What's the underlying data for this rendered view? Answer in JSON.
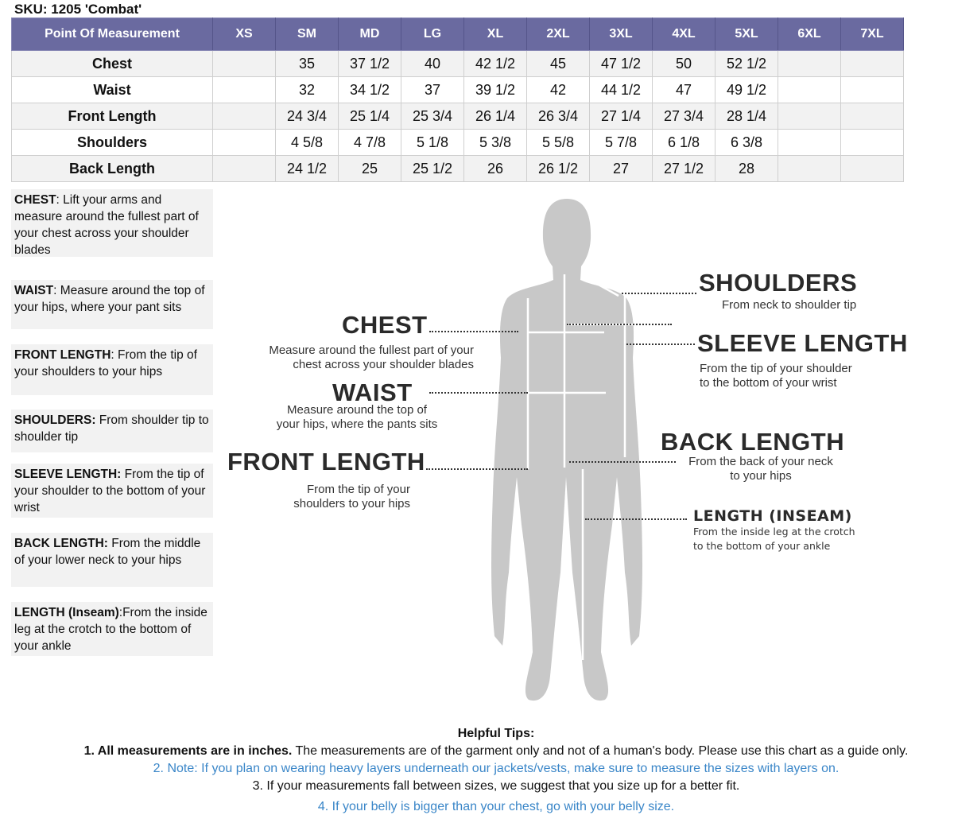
{
  "sku": "SKU: 1205 'Combat'",
  "table": {
    "headers": [
      "Point Of Measurement",
      "XS",
      "SM",
      "MD",
      "LG",
      "XL",
      "2XL",
      "3XL",
      "4XL",
      "5XL",
      "6XL",
      "7XL"
    ],
    "rows": [
      [
        "Chest",
        "",
        "35",
        "37 1/2",
        "40",
        "42 1/2",
        "45",
        "47 1/2",
        "50",
        "52 1/2",
        "",
        ""
      ],
      [
        "Waist",
        "",
        "32",
        "34 1/2",
        "37",
        "39 1/2",
        "42",
        "44 1/2",
        "47",
        "49 1/2",
        "",
        ""
      ],
      [
        "Front Length",
        "",
        "24 3/4",
        "25 1/4",
        "25 3/4",
        "26 1/4",
        "26 3/4",
        "27 1/4",
        "27 3/4",
        "28 1/4",
        "",
        ""
      ],
      [
        "Shoulders",
        "",
        "4 5/8",
        "4 7/8",
        "5 1/8",
        "5 3/8",
        "5 5/8",
        "5 7/8",
        "6 1/8",
        "6 3/8",
        "",
        ""
      ],
      [
        "Back Length",
        "",
        "24 1/2",
        "25",
        "25 1/2",
        "26",
        "26 1/2",
        "27",
        "27 1/2",
        "28",
        "",
        ""
      ]
    ],
    "header_color": "#6a6aa0"
  },
  "notes": [
    {
      "term": "CHEST",
      "text": ": Lift your arms  and measure around the fullest part of your chest across your shoulder blades"
    },
    {
      "term": "WAIST",
      "text": ":  Measure around the top of your hips, where your pant sits"
    },
    {
      "term": "FRONT LENGTH",
      "text": ": From the tip of your shoulders to your hips"
    },
    {
      "term": "SHOULDERS:",
      "text": " From shoulder tip to shoulder tip"
    },
    {
      "term": "SLEEVE LENGTH:",
      "text": " From the tip of your shoulder to the bottom of your wrist"
    },
    {
      "term": "BACK LENGTH:",
      "text": " From the middle of your lower neck to your hips"
    },
    {
      "term": "LENGTH (Inseam)",
      "text": ":From the inside leg at the crotch to the bottom of your ankle"
    }
  ],
  "figure": {
    "shoulders": {
      "title": "SHOULDERS",
      "desc": "From neck to shoulder tip"
    },
    "chest": {
      "title": "CHEST",
      "desc1": "Measure around the fullest part of your",
      "desc2": "chest across your shoulder blades"
    },
    "sleeve": {
      "title": "SLEEVE LENGTH",
      "desc1": "From the tip of your shoulder",
      "desc2": "to the bottom of your wrist"
    },
    "waist": {
      "title": "WAIST",
      "desc1": "Measure around the top of",
      "desc2": "your hips, where the pants sits"
    },
    "back": {
      "title": "BACK LENGTH",
      "desc1": "From the back of your neck",
      "desc2": "to your hips"
    },
    "front": {
      "title": "FRONT LENGTH",
      "desc1": "From the tip of your",
      "desc2": "shoulders to your hips"
    },
    "inseam": {
      "title": "LENGTH (INSEAM)",
      "desc1": "From the inside leg at the crotch",
      "desc2": "to the bottom of your ankle"
    }
  },
  "tips": {
    "title": "Helpful Tips:",
    "t1_bold": "1. All measurements are in inches.",
    "t1_rest": " The measurements are of the garment only and not of a human's body. Please use this chart as a guide only.",
    "t2": "2. Note: If you plan on wearing heavy layers underneath our jackets/vests, make sure to measure the sizes with layers on.",
    "t3": "3. If your measurements fall between sizes, we suggest that you size up for a better fit.",
    "t4": "4. If your belly is bigger than your chest, go with your belly size.",
    "blue_color": "#3a86c8"
  }
}
